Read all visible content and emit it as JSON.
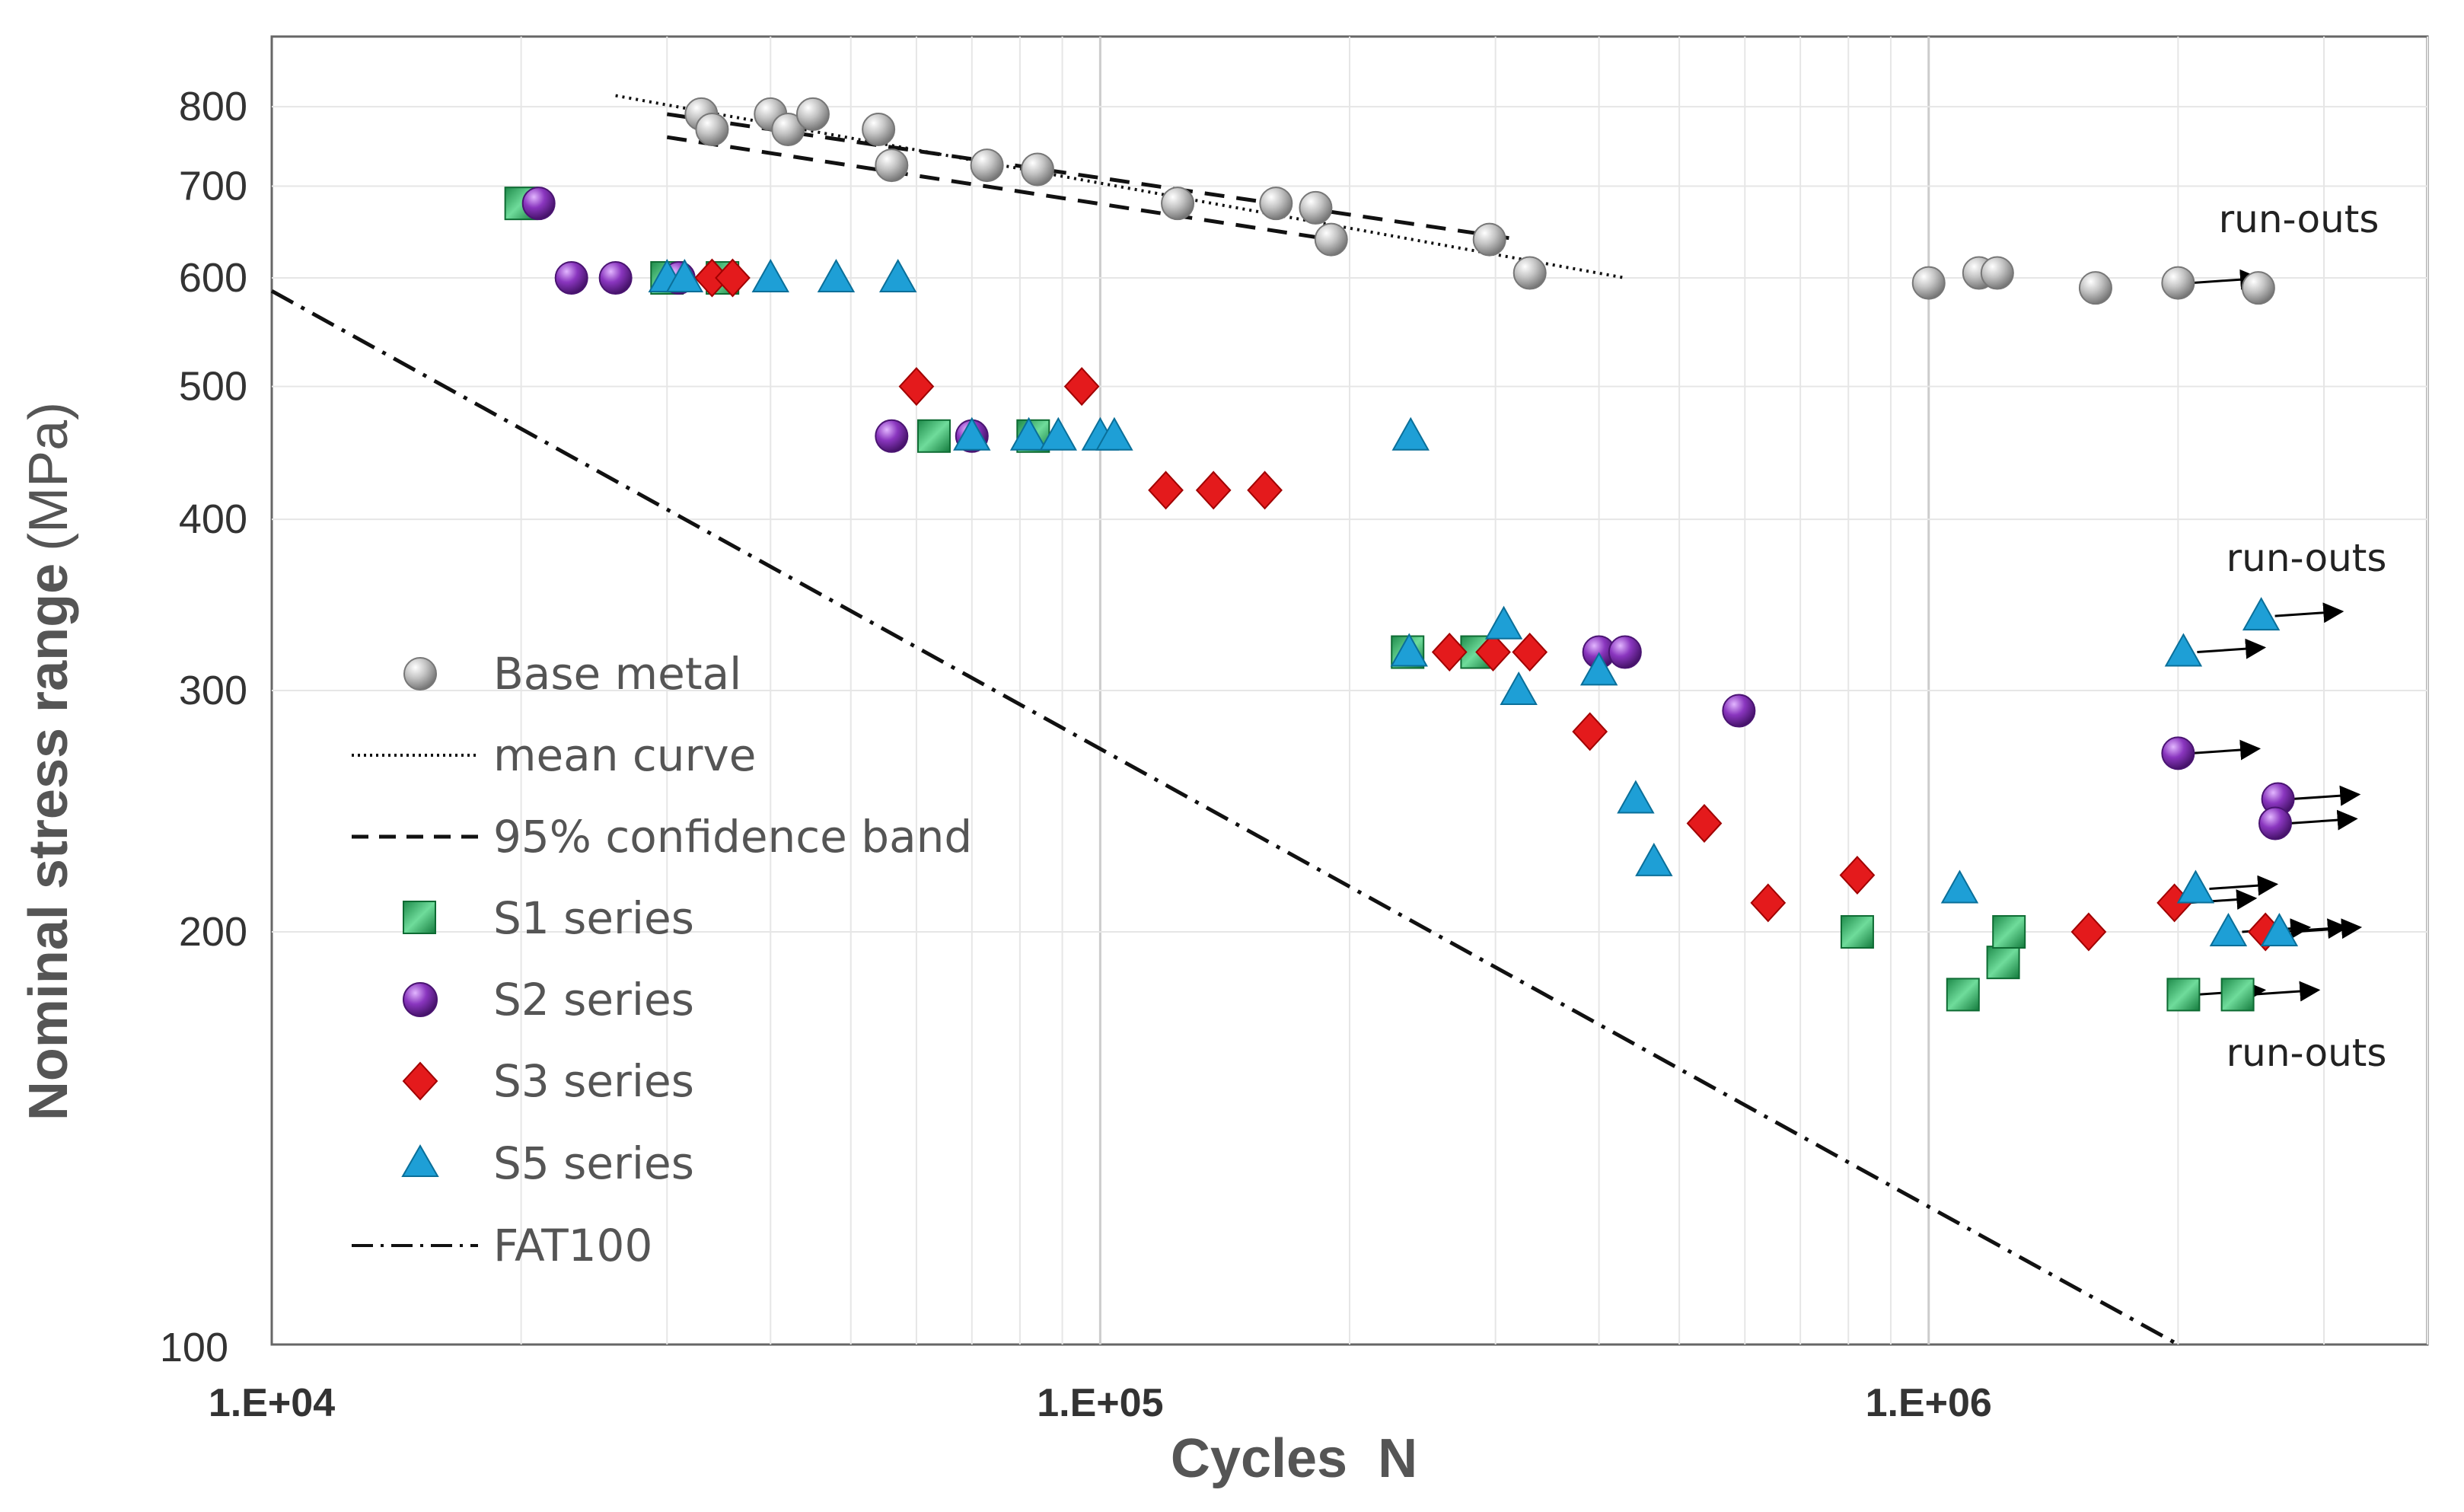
{
  "chart_data": {
    "type": "scatter",
    "xlabel": "Cycles  N",
    "ylabel_main": "Nominal stress range",
    "ylabel_unit": "(MPa)",
    "xscale": "log",
    "yscale": "log",
    "xlim": [
      10000,
      4000000
    ],
    "ylim": [
      100,
      900
    ],
    "x_ticks": [
      {
        "value": 10000,
        "label": "1.E+04"
      },
      {
        "value": 100000,
        "label": "1.E+05"
      },
      {
        "value": 1000000,
        "label": "1.E+06"
      }
    ],
    "y_ticks": [
      {
        "value": 100,
        "label": "100"
      },
      {
        "value": 200,
        "label": "200"
      },
      {
        "value": 300,
        "label": "300"
      },
      {
        "value": 400,
        "label": "400"
      },
      {
        "value": 500,
        "label": "500"
      },
      {
        "value": 600,
        "label": "600"
      },
      {
        "value": 700,
        "label": "700"
      },
      {
        "value": 800,
        "label": "800"
      }
    ],
    "grid": true,
    "legend_position": "left-middle",
    "series": [
      {
        "name": "Base metal",
        "marker": "sphere",
        "color": "#a8a8a8",
        "points": [
          [
            33000,
            790
          ],
          [
            34000,
            770
          ],
          [
            40000,
            790
          ],
          [
            42000,
            770
          ],
          [
            45000,
            790
          ],
          [
            54000,
            770
          ],
          [
            56000,
            725
          ],
          [
            73000,
            725
          ],
          [
            84000,
            720
          ],
          [
            124000,
            680
          ],
          [
            163000,
            680
          ],
          [
            182000,
            675
          ],
          [
            190000,
            640
          ],
          [
            295000,
            640
          ],
          [
            330000,
            605
          ],
          [
            1000000,
            595
          ],
          [
            1150000,
            605
          ],
          [
            1210000,
            605
          ],
          [
            1590000,
            590
          ],
          [
            2000000,
            595
          ],
          [
            2500000,
            590
          ]
        ],
        "runouts": [
          [
            2000000,
            595
          ]
        ]
      },
      {
        "name": "S1 series",
        "marker": "square",
        "color": "#1faa5a",
        "points": [
          [
            20000,
            680
          ],
          [
            30000,
            600
          ],
          [
            35000,
            600
          ],
          [
            63000,
            460
          ],
          [
            83000,
            460
          ],
          [
            235000,
            320
          ],
          [
            285000,
            320
          ],
          [
            820000,
            200
          ],
          [
            1100000,
            180
          ],
          [
            1230000,
            190
          ],
          [
            1250000,
            200
          ],
          [
            2030000,
            180
          ],
          [
            2360000,
            180
          ]
        ],
        "runouts": [
          [
            2030000,
            180
          ],
          [
            2360000,
            180
          ]
        ]
      },
      {
        "name": "S2 series",
        "marker": "sphere",
        "color": "#7b30a8",
        "points": [
          [
            21000,
            680
          ],
          [
            23000,
            600
          ],
          [
            26000,
            600
          ],
          [
            31000,
            600
          ],
          [
            56000,
            460
          ],
          [
            70000,
            460
          ],
          [
            400000,
            320
          ],
          [
            430000,
            320
          ],
          [
            590000,
            290
          ],
          [
            2000000,
            270
          ],
          [
            2640000,
            250
          ],
          [
            2620000,
            240
          ]
        ],
        "runouts": [
          [
            2000000,
            270
          ],
          [
            2640000,
            250
          ],
          [
            2620000,
            240
          ]
        ]
      },
      {
        "name": "S3 series",
        "marker": "diamond",
        "color": "#e41a1c",
        "points": [
          [
            34000,
            600
          ],
          [
            36000,
            600
          ],
          [
            60000,
            500
          ],
          [
            95000,
            500
          ],
          [
            120000,
            420
          ],
          [
            137000,
            420
          ],
          [
            158000,
            420
          ],
          [
            264000,
            320
          ],
          [
            298000,
            320
          ],
          [
            330000,
            320
          ],
          [
            390000,
            280
          ],
          [
            536000,
            240
          ],
          [
            640000,
            210
          ],
          [
            820000,
            220
          ],
          [
            1560000,
            200
          ],
          [
            1980000,
            210
          ],
          [
            2550000,
            200
          ]
        ],
        "runouts": [
          [
            1980000,
            210
          ],
          [
            2550000,
            200
          ]
        ]
      },
      {
        "name": "S5 series",
        "marker": "triangle",
        "color": "#1e9fd6",
        "points": [
          [
            30000,
            600
          ],
          [
            31500,
            600
          ],
          [
            40000,
            600
          ],
          [
            48000,
            600
          ],
          [
            57000,
            600
          ],
          [
            70000,
            460
          ],
          [
            82000,
            460
          ],
          [
            89000,
            460
          ],
          [
            100000,
            460
          ],
          [
            104000,
            460
          ],
          [
            237000,
            460
          ],
          [
            236000,
            320
          ],
          [
            307000,
            335
          ],
          [
            320000,
            300
          ],
          [
            400000,
            310
          ],
          [
            443000,
            250
          ],
          [
            466000,
            225
          ],
          [
            1090000,
            215
          ],
          [
            2030000,
            320
          ],
          [
            2100000,
            215
          ],
          [
            2300000,
            200
          ],
          [
            2520000,
            340
          ],
          [
            2650000,
            200
          ]
        ],
        "runouts": [
          [
            2030000,
            320
          ],
          [
            2100000,
            215
          ],
          [
            2300000,
            200
          ],
          [
            2520000,
            340
          ],
          [
            2650000,
            200
          ]
        ]
      }
    ],
    "lines": [
      {
        "name": "mean curve",
        "style": "dotted",
        "points": [
          [
            26000,
            815
          ],
          [
            430000,
            600
          ]
        ]
      },
      {
        "name": "95% confidence band",
        "style": "dashed",
        "points": [
          [
            30000,
            790
          ],
          [
            320000,
            640
          ]
        ]
      },
      {
        "name": "95% confidence band",
        "style": "dashed",
        "points": [
          [
            30000,
            760
          ],
          [
            190000,
            640
          ]
        ]
      },
      {
        "name": "FAT100",
        "style": "dashdot",
        "points": [
          [
            10000,
            587
          ],
          [
            2000000,
            100
          ]
        ]
      }
    ],
    "legend": [
      "Base metal",
      "mean curve",
      "95% confidence band",
      "S1 series",
      "S2 series",
      "S3 series",
      "S5 series",
      "FAT100"
    ],
    "annotations": [
      {
        "text": "run-outs",
        "x": 2750000,
        "y": 640
      },
      {
        "text": "run-outs",
        "x": 2800000,
        "y": 360
      },
      {
        "text": "run-outs",
        "x": 2800000,
        "y": 163
      }
    ]
  }
}
